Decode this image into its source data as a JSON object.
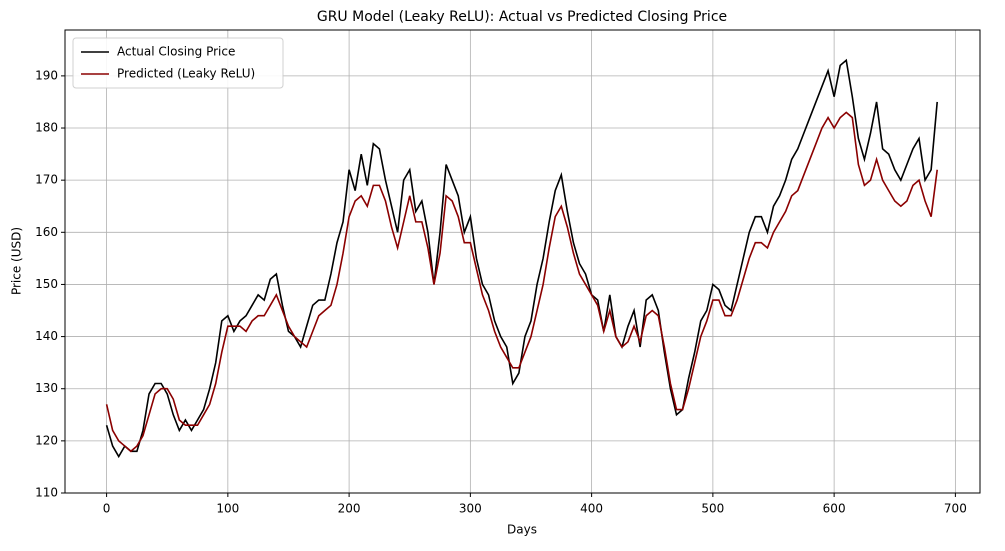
{
  "chart_data": {
    "type": "line",
    "title": "GRU Model (Leaky ReLU): Actual vs Predicted Closing Price",
    "xlabel": "Days",
    "ylabel": "Price (USD)",
    "x": [
      0,
      5,
      10,
      15,
      20,
      25,
      30,
      35,
      40,
      45,
      50,
      55,
      60,
      65,
      70,
      75,
      80,
      85,
      90,
      95,
      100,
      105,
      110,
      115,
      120,
      125,
      130,
      135,
      140,
      145,
      150,
      155,
      160,
      165,
      170,
      175,
      180,
      185,
      190,
      195,
      200,
      205,
      210,
      215,
      220,
      225,
      230,
      235,
      240,
      245,
      250,
      255,
      260,
      265,
      270,
      275,
      280,
      285,
      290,
      295,
      300,
      305,
      310,
      315,
      320,
      325,
      330,
      335,
      340,
      345,
      350,
      355,
      360,
      365,
      370,
      375,
      380,
      385,
      390,
      395,
      400,
      405,
      410,
      415,
      420,
      425,
      430,
      435,
      440,
      445,
      450,
      455,
      460,
      465,
      470,
      475,
      480,
      485,
      490,
      495,
      500,
      505,
      510,
      515,
      520,
      525,
      530,
      535,
      540,
      545,
      550,
      555,
      560,
      565,
      570,
      575,
      580,
      585,
      590,
      595,
      600,
      605,
      610,
      615,
      620,
      625,
      630,
      635,
      640,
      645,
      650,
      655,
      660,
      665,
      670,
      675,
      680,
      685
    ],
    "series": [
      {
        "name": "Actual Closing Price",
        "color": "#000000",
        "values": [
          123,
          119,
          117,
          119,
          118,
          118,
          122,
          129,
          131,
          131,
          129,
          125,
          122,
          124,
          122,
          124,
          126,
          130,
          135,
          143,
          144,
          141,
          143,
          144,
          146,
          148,
          147,
          151,
          152,
          146,
          141,
          140,
          138,
          142,
          146,
          147,
          147,
          152,
          158,
          162,
          172,
          168,
          175,
          169,
          177,
          176,
          170,
          165,
          160,
          170,
          172,
          164,
          166,
          160,
          150,
          160,
          173,
          170,
          167,
          160,
          163,
          155,
          150,
          148,
          143,
          140,
          138,
          131,
          133,
          140,
          143,
          150,
          155,
          162,
          168,
          171,
          164,
          158,
          154,
          152,
          148,
          147,
          141,
          148,
          140,
          138,
          142,
          145,
          138,
          147,
          148,
          145,
          137,
          130,
          125,
          126,
          132,
          137,
          143,
          145,
          150,
          149,
          146,
          145,
          150,
          155,
          160,
          163,
          163,
          160,
          165,
          167,
          170,
          174,
          176,
          179,
          182,
          185,
          188,
          191,
          186,
          192,
          193,
          186,
          178,
          174,
          179,
          185,
          176,
          175,
          172,
          170,
          173,
          176,
          178,
          170,
          172,
          185
        ]
      },
      {
        "name": "Predicted (Leaky ReLU)",
        "color": "#8b0000",
        "values": [
          127,
          122,
          120,
          119,
          118,
          119,
          121,
          125,
          129,
          130,
          130,
          128,
          124,
          123,
          123,
          123,
          125,
          127,
          131,
          137,
          142,
          142,
          142,
          141,
          143,
          144,
          144,
          146,
          148,
          145,
          142,
          140,
          139,
          138,
          141,
          144,
          145,
          146,
          150,
          156,
          163,
          166,
          167,
          165,
          169,
          169,
          166,
          161,
          157,
          162,
          167,
          162,
          162,
          157,
          150,
          156,
          167,
          166,
          163,
          158,
          158,
          153,
          148,
          145,
          141,
          138,
          136,
          134,
          134,
          137,
          140,
          145,
          150,
          157,
          163,
          165,
          161,
          156,
          152,
          150,
          148,
          146,
          141,
          145,
          140,
          138,
          139,
          142,
          139,
          144,
          145,
          144,
          138,
          131,
          126,
          126,
          130,
          135,
          140,
          143,
          147,
          147,
          144,
          144,
          147,
          151,
          155,
          158,
          158,
          157,
          160,
          162,
          164,
          167,
          168,
          171,
          174,
          177,
          180,
          182,
          180,
          182,
          183,
          182,
          173,
          169,
          170,
          174,
          170,
          168,
          166,
          165,
          166,
          169,
          170,
          166,
          163,
          172
        ]
      }
    ],
    "xlim": [
      -34.3,
      720.3
    ],
    "ylim": [
      110,
      198.8
    ],
    "xticks": [
      0,
      100,
      200,
      300,
      400,
      500,
      600,
      700
    ],
    "yticks": [
      110,
      120,
      130,
      140,
      150,
      160,
      170,
      180,
      190
    ],
    "grid": true,
    "legend": "upper left"
  }
}
